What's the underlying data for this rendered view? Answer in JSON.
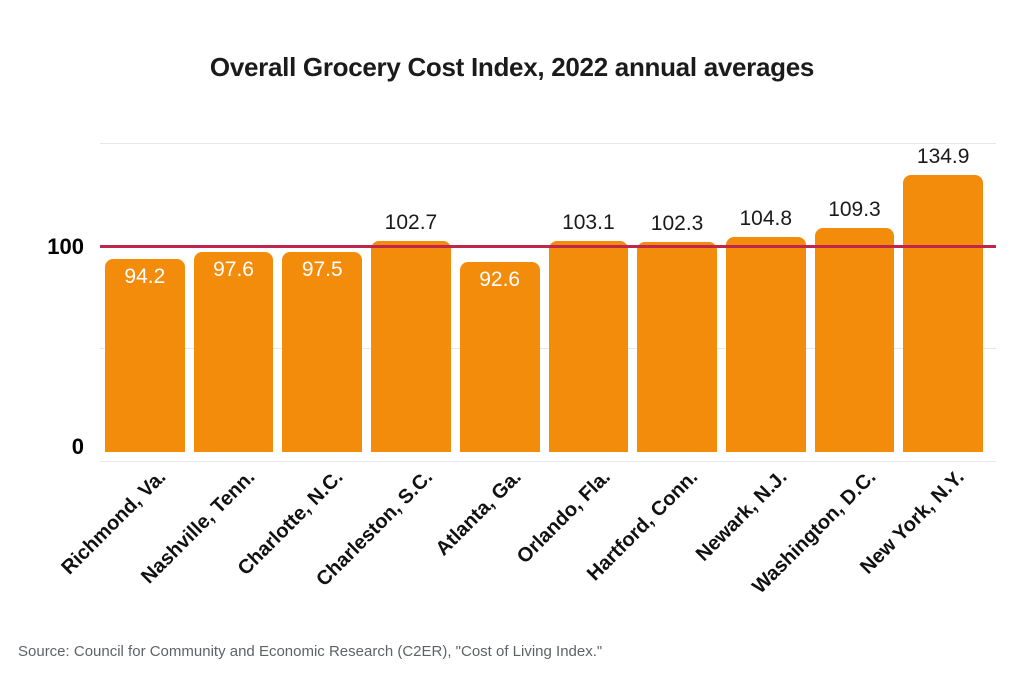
{
  "page": {
    "title": "Overall Grocery Cost Index, 2022 annual averages",
    "source": "Source: Council for Community and Economic Research (C2ER), \"Cost of Living Index.\""
  },
  "axis": {
    "y_tick_top": "100",
    "y_tick_bottom": "0"
  },
  "chart_data": {
    "type": "bar",
    "title": "Overall Grocery Cost Index, 2022 annual averages",
    "categories": [
      "Richmond, Va.",
      "Nashville, Tenn.",
      "Charlotte, N.C.",
      "Charleston, S.C.",
      "Atlanta, Ga.",
      "Orlando, Fla.",
      "Hartford, Conn.",
      "Newark, N.J.",
      "Washington, D.C.",
      "New York, N.Y."
    ],
    "values": [
      94.2,
      97.6,
      97.5,
      102.7,
      92.6,
      103.1,
      102.3,
      104.8,
      109.3,
      134.9
    ],
    "xlabel": "",
    "ylabel": "",
    "ylim": [
      0,
      157
    ],
    "yticks_labeled": [
      0,
      100
    ],
    "gridlines": [
      50,
      150
    ],
    "reference_line": {
      "value": 100
    },
    "grid": "horizontal",
    "legend": "none",
    "value_label_position": "above if >= 100, inside top of bar if < 100",
    "colors": {
      "bar": "#f28c0a",
      "reference_line": "#c0254c",
      "label_above": "#1a1a1a",
      "label_inside": "#ffffff",
      "gridline": "#e7e7e7",
      "axis_text": "#111111",
      "title": "#1b1b1b",
      "source_text": "#5f6368",
      "background": "#ffffff"
    }
  }
}
